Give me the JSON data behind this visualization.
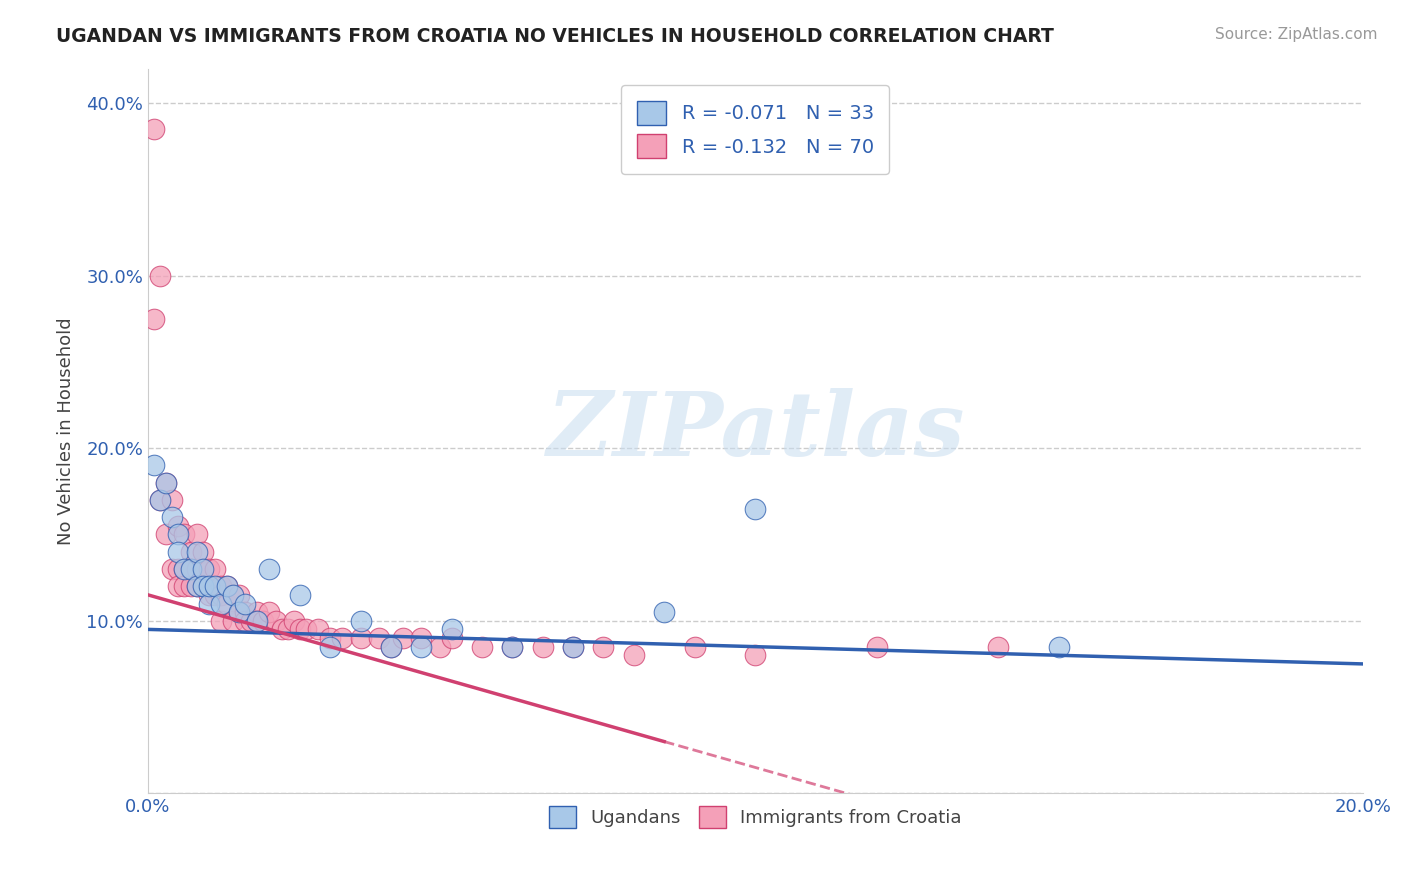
{
  "title": "UGANDAN VS IMMIGRANTS FROM CROATIA NO VEHICLES IN HOUSEHOLD CORRELATION CHART",
  "source": "Source: ZipAtlas.com",
  "ylabel": "No Vehicles in Household",
  "xlim": [
    0.0,
    0.2
  ],
  "ylim": [
    0.0,
    0.42
  ],
  "y_ticks": [
    0.0,
    0.1,
    0.2,
    0.3,
    0.4
  ],
  "y_tick_labels": [
    "",
    "10.0%",
    "20.0%",
    "30.0%",
    "40.0%"
  ],
  "x_ticks": [
    0.0,
    0.05,
    0.1,
    0.15,
    0.2
  ],
  "x_tick_labels": [
    "0.0%",
    "",
    "",
    "",
    "20.0%"
  ],
  "legend_labels": [
    "Ugandans",
    "Immigrants from Croatia"
  ],
  "blue_color": "#a8c8e8",
  "pink_color": "#f4a0b8",
  "blue_line_color": "#3060b0",
  "pink_line_color": "#d04070",
  "blue_R": -0.071,
  "blue_N": 33,
  "pink_R": -0.132,
  "pink_N": 70,
  "grid_color": "#cccccc",
  "ugandan_x": [
    0.001,
    0.002,
    0.003,
    0.004,
    0.005,
    0.005,
    0.006,
    0.007,
    0.008,
    0.008,
    0.009,
    0.009,
    0.01,
    0.01,
    0.011,
    0.012,
    0.013,
    0.014,
    0.015,
    0.016,
    0.018,
    0.02,
    0.025,
    0.03,
    0.035,
    0.04,
    0.045,
    0.05,
    0.06,
    0.07,
    0.085,
    0.1,
    0.15
  ],
  "ugandan_y": [
    0.19,
    0.17,
    0.18,
    0.16,
    0.15,
    0.14,
    0.13,
    0.13,
    0.14,
    0.12,
    0.13,
    0.12,
    0.11,
    0.12,
    0.12,
    0.11,
    0.12,
    0.115,
    0.105,
    0.11,
    0.1,
    0.13,
    0.115,
    0.085,
    0.1,
    0.085,
    0.085,
    0.095,
    0.085,
    0.085,
    0.105,
    0.165,
    0.085
  ],
  "croatia_x": [
    0.001,
    0.001,
    0.002,
    0.002,
    0.003,
    0.003,
    0.004,
    0.004,
    0.005,
    0.005,
    0.005,
    0.006,
    0.006,
    0.006,
    0.007,
    0.007,
    0.007,
    0.008,
    0.008,
    0.008,
    0.009,
    0.009,
    0.009,
    0.01,
    0.01,
    0.01,
    0.011,
    0.011,
    0.012,
    0.012,
    0.012,
    0.013,
    0.013,
    0.014,
    0.014,
    0.015,
    0.015,
    0.016,
    0.016,
    0.017,
    0.018,
    0.018,
    0.019,
    0.02,
    0.021,
    0.022,
    0.023,
    0.024,
    0.025,
    0.026,
    0.028,
    0.03,
    0.032,
    0.035,
    0.038,
    0.04,
    0.042,
    0.045,
    0.048,
    0.05,
    0.055,
    0.06,
    0.065,
    0.07,
    0.075,
    0.08,
    0.09,
    0.1,
    0.12,
    0.14
  ],
  "croatia_y": [
    0.385,
    0.275,
    0.3,
    0.17,
    0.18,
    0.15,
    0.17,
    0.13,
    0.155,
    0.13,
    0.12,
    0.15,
    0.13,
    0.12,
    0.14,
    0.13,
    0.12,
    0.15,
    0.13,
    0.12,
    0.14,
    0.13,
    0.12,
    0.13,
    0.12,
    0.115,
    0.13,
    0.115,
    0.12,
    0.115,
    0.1,
    0.12,
    0.11,
    0.115,
    0.1,
    0.115,
    0.105,
    0.105,
    0.1,
    0.1,
    0.105,
    0.1,
    0.1,
    0.105,
    0.1,
    0.095,
    0.095,
    0.1,
    0.095,
    0.095,
    0.095,
    0.09,
    0.09,
    0.09,
    0.09,
    0.085,
    0.09,
    0.09,
    0.085,
    0.09,
    0.085,
    0.085,
    0.085,
    0.085,
    0.085,
    0.08,
    0.085,
    0.08,
    0.085,
    0.085
  ]
}
